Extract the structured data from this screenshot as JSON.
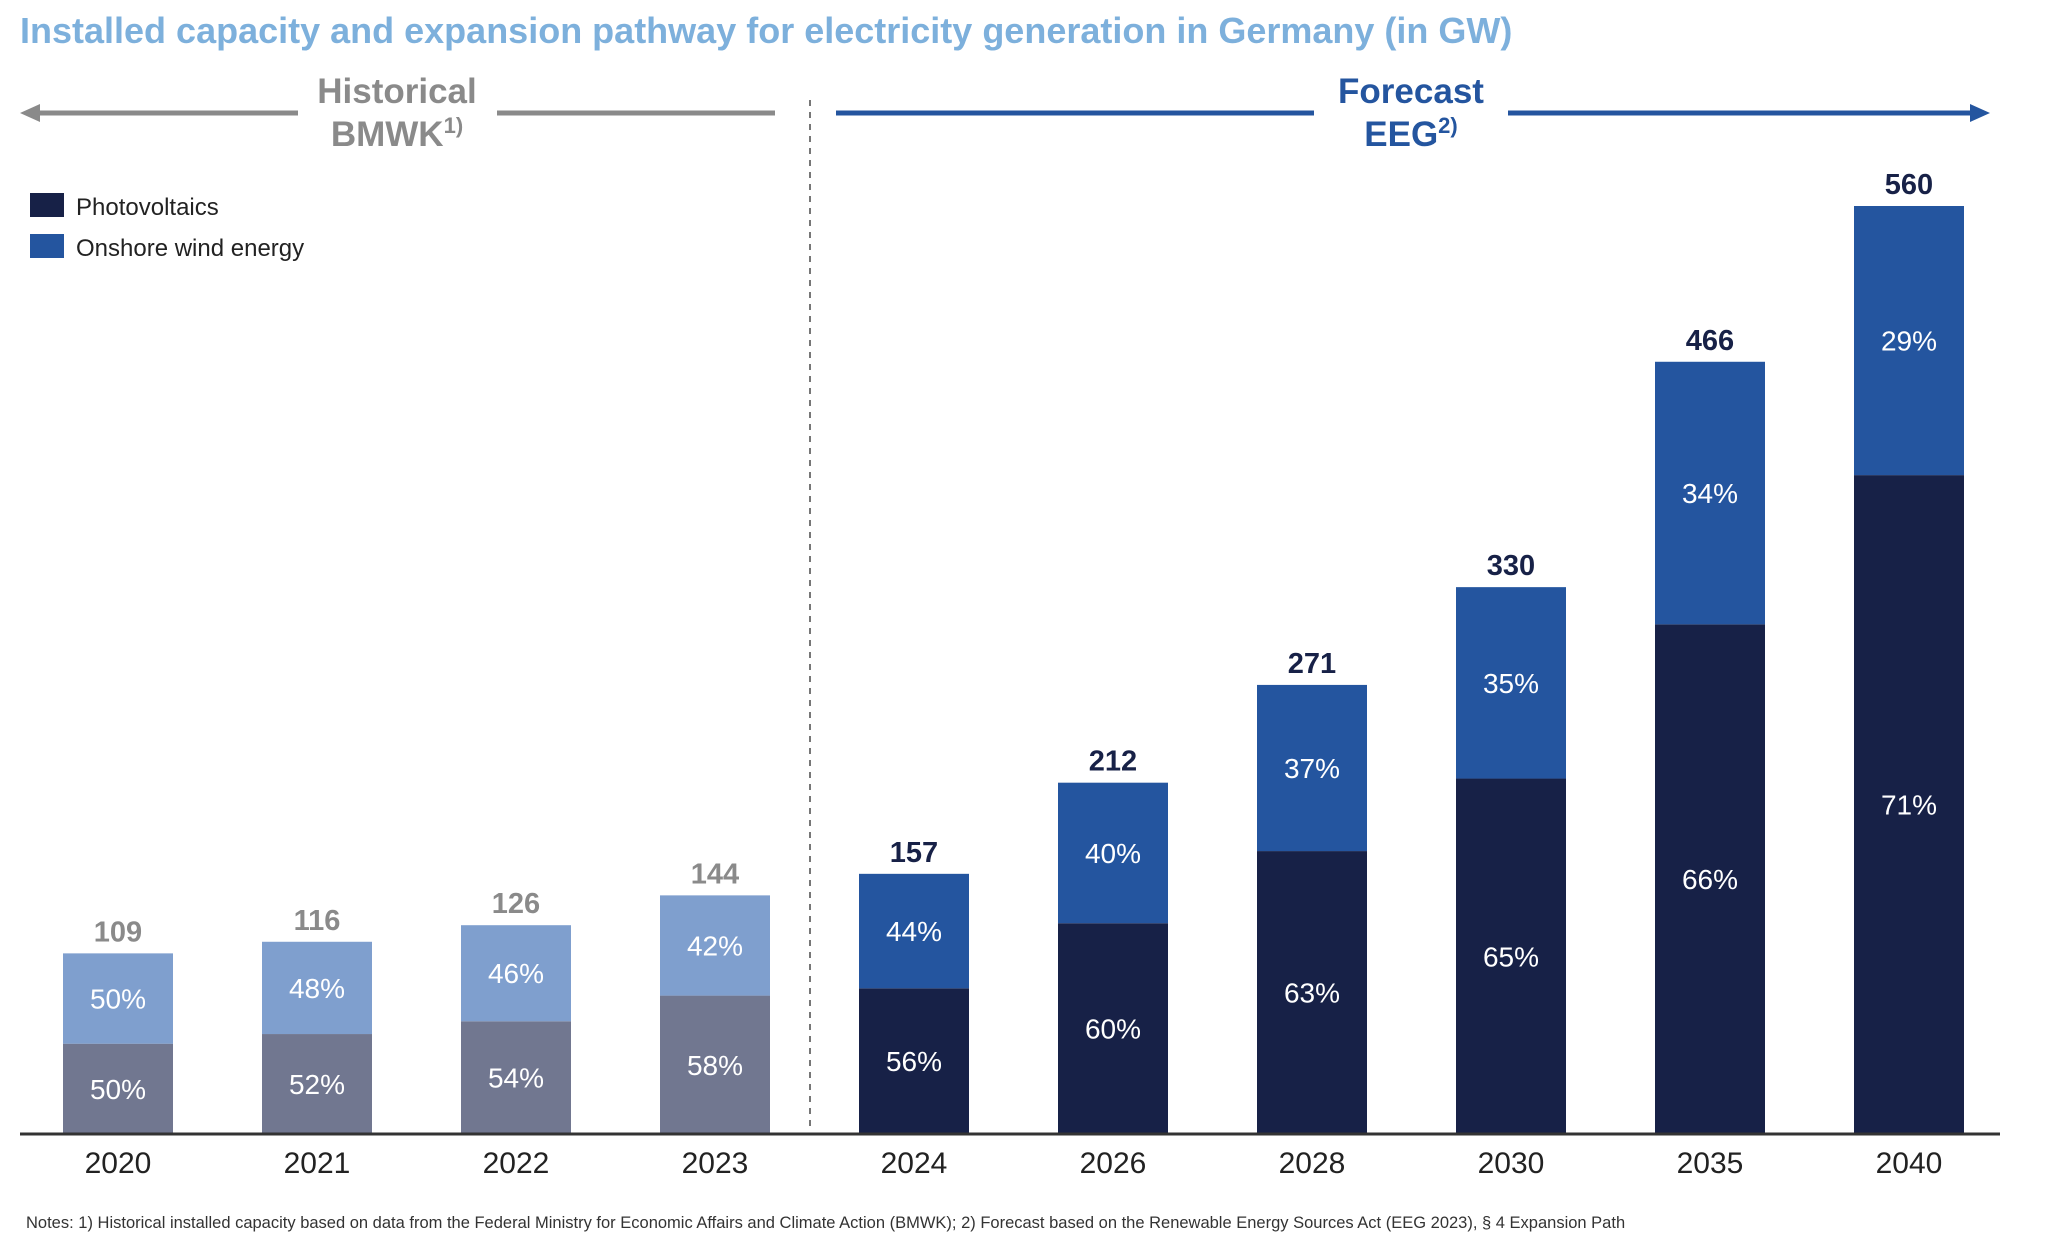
{
  "title": "Installed capacity and expansion pathway for electricity generation in Germany (in GW)",
  "notes": "Notes: 1) Historical installed capacity based on data from the Federal Ministry for Economic Affairs and Climate Action (BMWK); 2) Forecast based on the Renewable Energy Sources Act (EEG 2023), § 4 Expansion Path",
  "colors": {
    "title": "#7db0dc",
    "historical_pv": "#717790",
    "historical_wind": "#7f9fce",
    "forecast_pv": "#172147",
    "forecast_wind": "#24559f",
    "historical_header": "#8a8a8a",
    "forecast_header": "#24559f",
    "axis": "#333333"
  },
  "chart_data": {
    "type": "bar",
    "stacked": true,
    "categories": [
      "2020",
      "2021",
      "2022",
      "2023",
      "2024",
      "2026",
      "2028",
      "2030",
      "2035",
      "2040"
    ],
    "totals": [
      109,
      116,
      126,
      144,
      157,
      212,
      271,
      330,
      466,
      560
    ],
    "totals_labels": [
      "109",
      "116",
      "126",
      "144",
      "157",
      "212",
      "271",
      "330",
      "466",
      "560"
    ],
    "series": [
      {
        "name": "Photovoltaics",
        "share_percent": [
          50,
          52,
          54,
          58,
          56,
          60,
          63,
          65,
          66,
          71
        ],
        "labels": [
          "50%",
          "52%",
          "54%",
          "58%",
          "56%",
          "60%",
          "63%",
          "65%",
          "66%",
          "71%"
        ]
      },
      {
        "name": "Onshore wind energy",
        "share_percent": [
          50,
          48,
          46,
          42,
          44,
          40,
          37,
          35,
          34,
          29
        ],
        "labels": [
          "50%",
          "48%",
          "46%",
          "42%",
          "44%",
          "40%",
          "37%",
          "35%",
          "34%",
          "29%"
        ]
      }
    ],
    "historical_count": 4,
    "ylim": [
      0,
      560
    ],
    "grid": false,
    "legend_position": "top-left",
    "periods": [
      {
        "line1": "Historical",
        "line2_main": "BMWK",
        "line2_sup": "1)"
      },
      {
        "line1": "Forecast",
        "line2_main": "EEG",
        "line2_sup": "2)"
      }
    ]
  }
}
